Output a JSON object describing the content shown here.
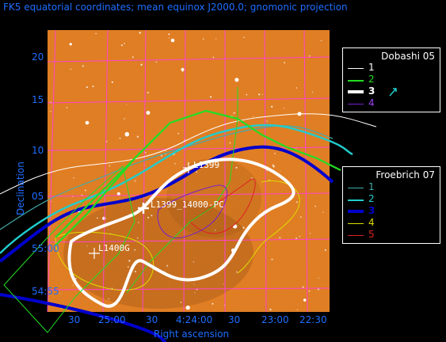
{
  "title": "FK5 equatorial coordinates; mean equinox J2000.0; gnomonic projection",
  "axes": {
    "xlabel": "Right ascension",
    "ylabel": "Declination",
    "x_ticks": [
      "30",
      "25:00",
      "30",
      "4:24:00",
      "30",
      "23:00",
      "22:30"
    ],
    "y_ticks": [
      "20",
      "15",
      "10",
      "05",
      "55:00",
      "54:55"
    ]
  },
  "sources": [
    {
      "name": "L1399_14000-PC",
      "marker": "cross"
    },
    {
      "name": "L1400G",
      "marker": "cross"
    },
    {
      "name": "L1399",
      "marker": "cross"
    }
  ],
  "legends": [
    {
      "title": "Dobashi 05",
      "items": [
        {
          "label": "1",
          "color": "#ffffff",
          "width": 1
        },
        {
          "label": "2",
          "color": "#22dd22",
          "width": 2
        },
        {
          "label": "3",
          "color": "#ffffff",
          "width": 4
        },
        {
          "label": "4",
          "color": "#7722cc",
          "width": 1
        }
      ]
    },
    {
      "title": "Froebrich 07",
      "items": [
        {
          "label": "1",
          "color": "#44aaaa",
          "width": 1
        },
        {
          "label": "2",
          "color": "#22cccc",
          "width": 2
        },
        {
          "label": "3",
          "color": "#0000cc",
          "width": 4
        },
        {
          "label": "4",
          "color": "#dddd00",
          "width": 1
        },
        {
          "label": "5",
          "color": "#dd2222",
          "width": 1
        }
      ]
    }
  ],
  "colors": {
    "title": "#1e6eff",
    "axis_text": "#1e6eff",
    "grid": "#ff44cc",
    "image_base": "#e67a1e"
  }
}
